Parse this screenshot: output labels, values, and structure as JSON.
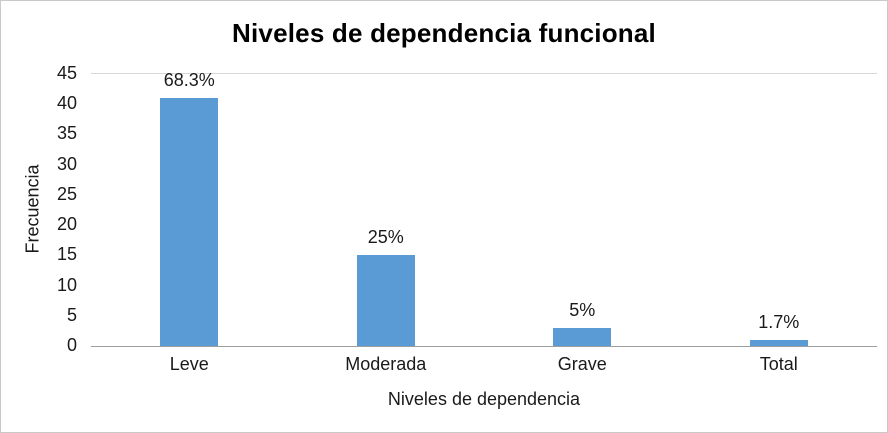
{
  "chart_data": {
    "type": "bar",
    "title": "Niveles de dependencia funcional",
    "categories": [
      "Leve",
      "Moderada",
      "Grave",
      "Total"
    ],
    "values": [
      41,
      15,
      3,
      1
    ],
    "data_labels": [
      "68.3%",
      "25%",
      "5%",
      "1.7%"
    ],
    "xlabel": "Niveles de dependencia",
    "ylabel": "Frecuencia",
    "ylim": [
      0,
      45
    ],
    "yticks": [
      0,
      5,
      10,
      15,
      20,
      25,
      30,
      35,
      40,
      45
    ],
    "bar_color": "#5B9BD5",
    "grid": "top-line-only",
    "legend": "none",
    "label_color": "#1a1a1a",
    "axis_line_color": "#9e9e9e"
  }
}
